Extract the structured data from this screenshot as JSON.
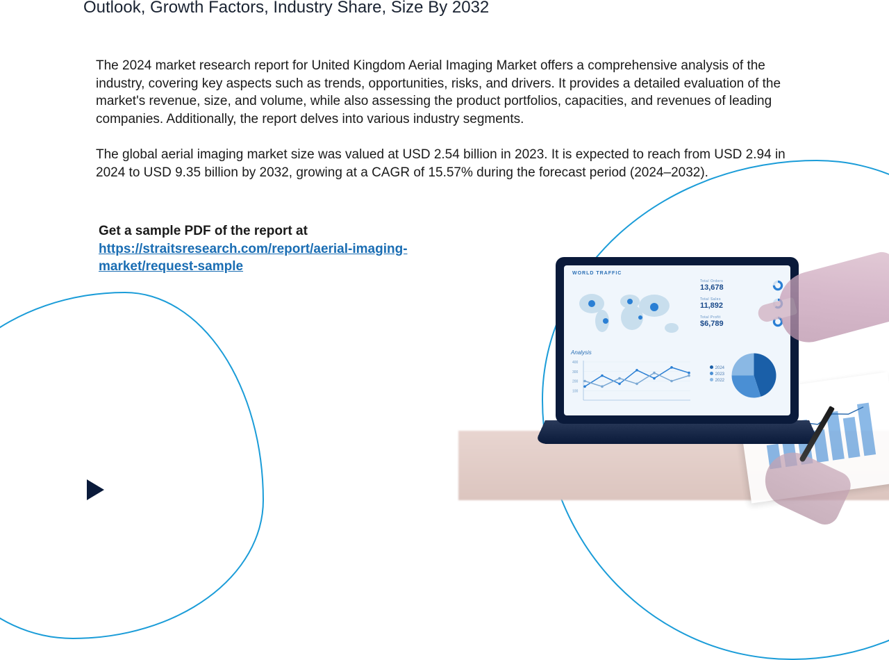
{
  "title": "Outlook, Growth Factors, Industry Share, Size By 2032",
  "paragraph1": "The 2024 market research report for United Kingdom Aerial Imaging Market offers a comprehensive analysis of the industry, covering key aspects such as trends, opportunities, risks, and drivers. It provides a detailed evaluation of the market's revenue, size, and volume, while also assessing the product portfolios, capacities, and revenues of leading companies. Additionally, the report delves into various industry segments.",
  "paragraph2": "The global aerial imaging market size was valued at USD 2.54 billion in 2023. It is expected to reach from USD 2.94 in 2024 to USD 9.35 billion by 2032, growing at a CAGR of 15.57% during the forecast period (2024–2032).",
  "cta": {
    "prefix": "Get a sample PDF of the report at ",
    "link_text": "https://straitsresearch.com/report/aerial-imaging-market/request-sample",
    "link_href": "https://straitsresearch.com/report/aerial-imaging-market/request-sample"
  },
  "colors": {
    "curve": "#1a9cd8",
    "link": "#1a6db3",
    "heading": "#1a2332",
    "body": "#1a1a1a"
  },
  "laptop_dashboard": {
    "header": "WORLD TRAFFIC",
    "stats": [
      {
        "label": "Total Orders",
        "value": "13,678",
        "donut_pct": 75,
        "donut_color": "#2a7fd4"
      },
      {
        "label": "Total Sales",
        "value": "11,892",
        "donut_pct": 60,
        "donut_color": "#2a7fd4"
      },
      {
        "label": "Total Profit",
        "value": "$6,789",
        "donut_pct": 85,
        "donut_color": "#2a7fd4"
      }
    ],
    "map_marker_color": "#2a7fd4",
    "map_land_color": "#b8d4e8",
    "analysis_label": "Analysis",
    "line_chart": {
      "y_ticks": [
        100,
        200,
        300,
        400
      ],
      "series": [
        {
          "color": "#2a7fd4",
          "points": [
            25,
            45,
            30,
            55,
            40,
            60,
            50
          ]
        },
        {
          "color": "#7aa8d4",
          "points": [
            35,
            25,
            40,
            30,
            50,
            35,
            45
          ]
        }
      ]
    },
    "pie_chart": {
      "slices": [
        {
          "label": "2024",
          "value": 45,
          "color": "#1a5fa8"
        },
        {
          "label": "2023",
          "value": 30,
          "color": "#4a8fd4"
        },
        {
          "label": "2022",
          "value": 25,
          "color": "#8ab8e4"
        }
      ]
    }
  },
  "paper_chart": {
    "bar_color": "#2a7fd4",
    "line_color": "#1a5fa8",
    "bars": [
      30,
      45,
      55,
      40,
      60,
      50,
      65
    ],
    "line": [
      35,
      40,
      50,
      45,
      55,
      52,
      58
    ]
  }
}
